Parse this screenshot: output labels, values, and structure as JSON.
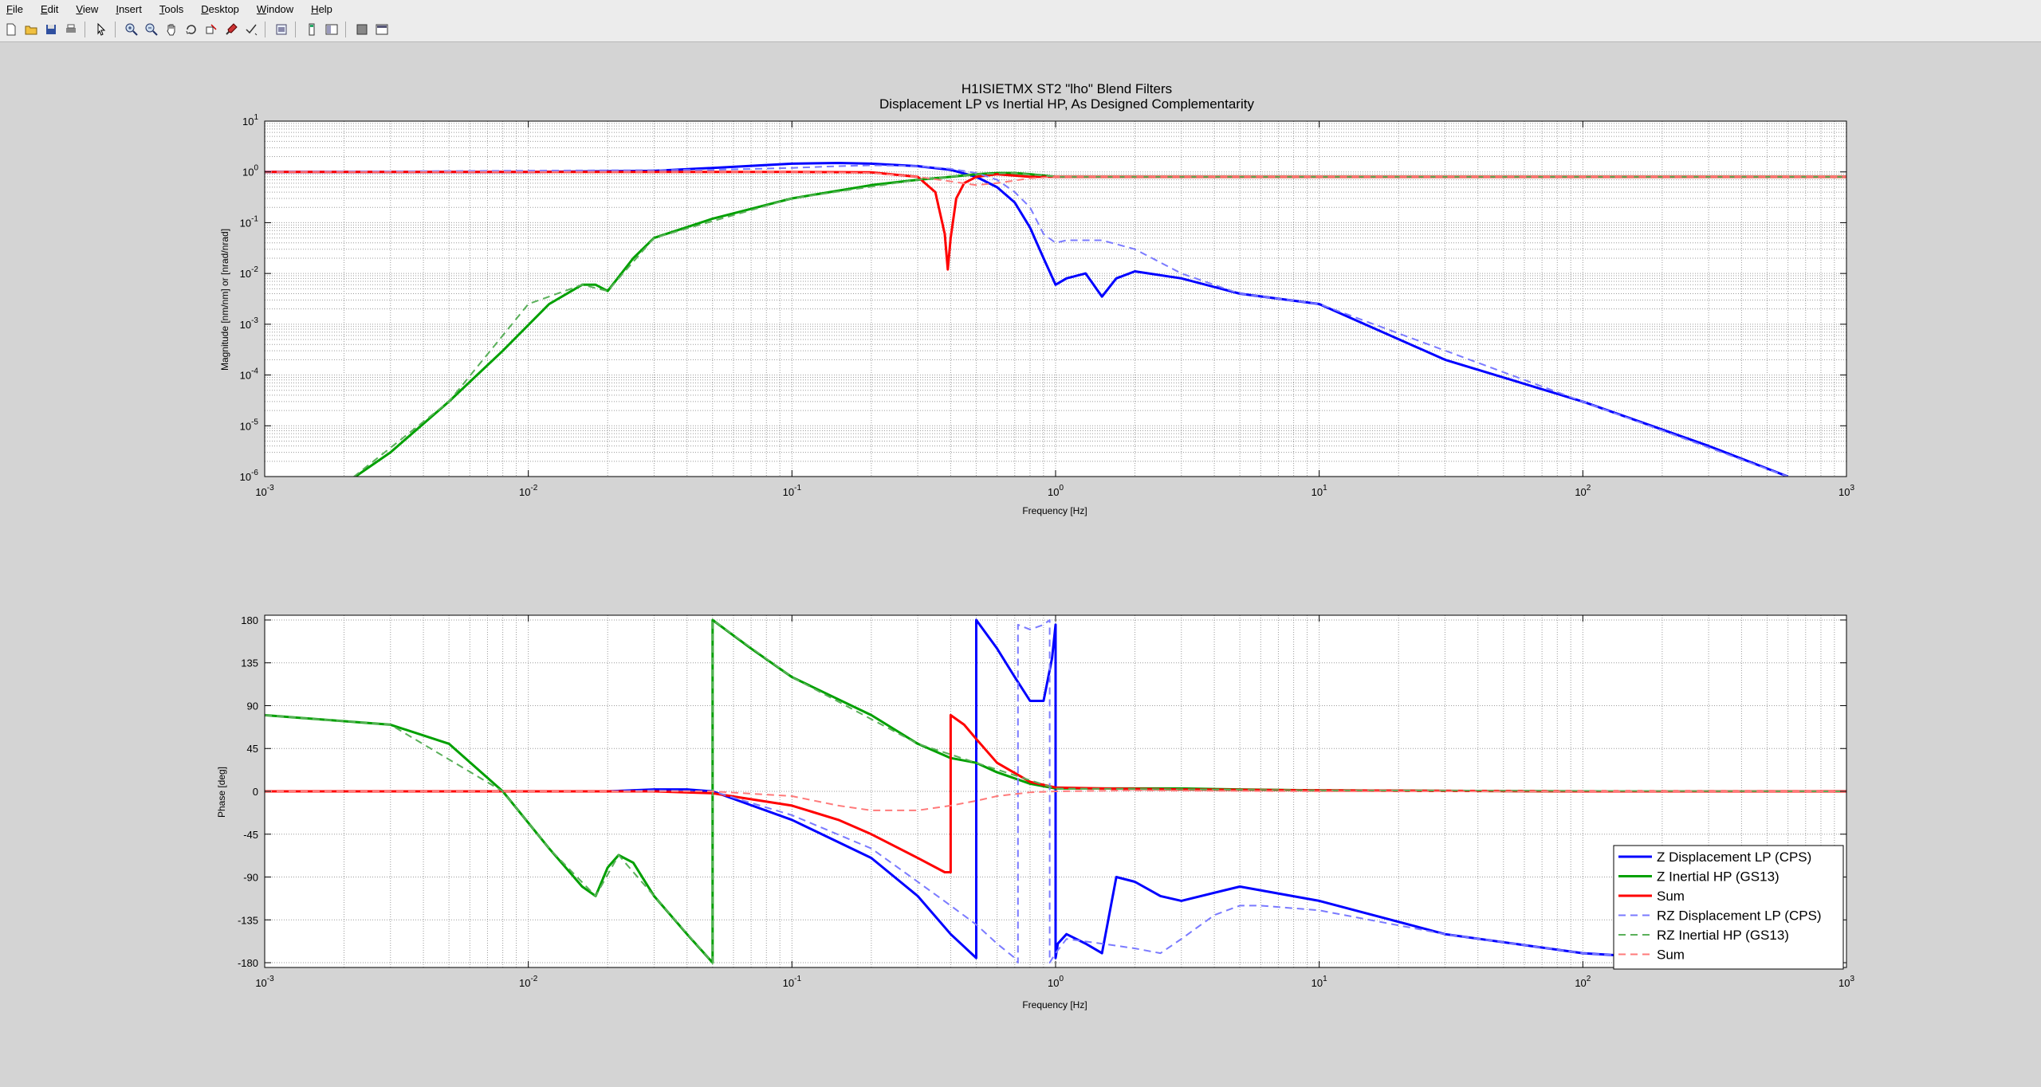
{
  "window": {
    "menu": [
      "File",
      "Edit",
      "View",
      "Insert",
      "Tools",
      "Desktop",
      "Window",
      "Help"
    ]
  },
  "toolbar_icons": [
    "new-figure-icon",
    "open-file-icon",
    "save-icon",
    "print-icon",
    "edit-plot-arrow-icon",
    "zoom-in-icon",
    "zoom-out-icon",
    "pan-hand-icon",
    "rotate-3d-icon",
    "data-cursor-icon",
    "brush-icon",
    "link-plot-icon",
    "insert-colorbar-icon",
    "insert-legend-icon",
    "hide-plot-tools-icon",
    "show-plot-tools-icon"
  ],
  "chart_data": [
    {
      "type": "line",
      "title": "H1ISIETMX ST2 \"lho\" Blend Filters",
      "subtitle": "Displacement LP vs Inertial HP, As Designed Complementarity",
      "xlabel": "Frequency [Hz]",
      "ylabel": "Magnitude [nm/nm] or [nrad/nrad]",
      "xscale": "log",
      "yscale": "log",
      "xlim": [
        0.001,
        1000
      ],
      "ylim": [
        1e-06,
        10
      ],
      "xticks": [
        "10-3",
        "10-2",
        "10-1",
        "100",
        "101",
        "102",
        "103"
      ],
      "yticks": [
        "10-6",
        "10-5",
        "10-4",
        "10-3",
        "10-2",
        "10-1",
        "100",
        "101"
      ],
      "grid": true,
      "series": [
        {
          "name": "Z Displacement LP (CPS)",
          "color": "#0000ff",
          "dash": "solid",
          "x": [
            0.001,
            0.01,
            0.03,
            0.05,
            0.1,
            0.15,
            0.2,
            0.3,
            0.4,
            0.5,
            0.6,
            0.7,
            0.8,
            0.9,
            1.0,
            1.1,
            1.3,
            1.5,
            1.7,
            2,
            3,
            5,
            10,
            30,
            100,
            300,
            600
          ],
          "y": [
            1,
            1,
            1.05,
            1.2,
            1.45,
            1.5,
            1.45,
            1.3,
            1.1,
            0.8,
            0.5,
            0.25,
            0.08,
            0.02,
            0.006,
            0.008,
            0.01,
            0.0035,
            0.008,
            0.011,
            0.008,
            0.004,
            0.0025,
            0.0002,
            3e-05,
            4e-06,
            1e-06
          ]
        },
        {
          "name": "Z Inertial HP (GS13)",
          "color": "#00a000",
          "dash": "solid",
          "x": [
            0.002,
            0.003,
            0.005,
            0.008,
            0.012,
            0.016,
            0.018,
            0.02,
            0.025,
            0.03,
            0.05,
            0.1,
            0.2,
            0.3,
            0.4,
            0.5,
            0.6,
            0.7,
            0.8,
            1.0,
            2,
            10,
            100,
            1000
          ],
          "y": [
            7e-07,
            3e-06,
            3e-05,
            0.0003,
            0.0025,
            0.006,
            0.006,
            0.0045,
            0.02,
            0.05,
            0.12,
            0.3,
            0.55,
            0.7,
            0.8,
            0.9,
            0.95,
            0.95,
            0.9,
            0.8,
            0.8,
            0.8,
            0.8,
            0.8
          ]
        },
        {
          "name": "Sum",
          "color": "#ff0000",
          "dash": "solid",
          "x": [
            0.001,
            0.1,
            0.2,
            0.3,
            0.35,
            0.38,
            0.39,
            0.4,
            0.42,
            0.45,
            0.5,
            0.6,
            0.8,
            1,
            1000
          ],
          "y": [
            1,
            1,
            0.98,
            0.8,
            0.4,
            0.06,
            0.012,
            0.05,
            0.3,
            0.6,
            0.8,
            0.9,
            0.8,
            0.8,
            0.8
          ]
        },
        {
          "name": "RZ Displacement LP (CPS)",
          "color": "#7a7aff",
          "dash": "dashed",
          "x": [
            0.001,
            0.05,
            0.1,
            0.15,
            0.2,
            0.3,
            0.4,
            0.5,
            0.6,
            0.7,
            0.8,
            0.9,
            1.0,
            1.1,
            1.5,
            2,
            3,
            5,
            10,
            100,
            600
          ],
          "y": [
            1,
            1.1,
            1.2,
            1.3,
            1.35,
            1.3,
            1.15,
            0.95,
            0.7,
            0.4,
            0.2,
            0.06,
            0.04,
            0.045,
            0.045,
            0.03,
            0.01,
            0.004,
            0.0025,
            3e-05,
            1e-06
          ]
        },
        {
          "name": "RZ Inertial HP (GS13)",
          "color": "#5ab05a",
          "dash": "dashed",
          "x": [
            0.002,
            0.005,
            0.01,
            0.016,
            0.02,
            0.03,
            0.1,
            0.3,
            0.5,
            0.7,
            1.0,
            1000
          ],
          "y": [
            7e-07,
            3e-05,
            0.0025,
            0.006,
            0.0045,
            0.05,
            0.3,
            0.7,
            0.9,
            0.95,
            0.8,
            0.8
          ]
        },
        {
          "name": "Sum",
          "color": "#ff7a7a",
          "dash": "dashed",
          "x": [
            0.001,
            0.1,
            0.2,
            0.3,
            0.4,
            0.5,
            0.6,
            0.8,
            1,
            1000
          ],
          "y": [
            1,
            1,
            0.95,
            0.8,
            0.65,
            0.55,
            0.6,
            0.75,
            0.8,
            0.8
          ]
        }
      ]
    },
    {
      "type": "line",
      "title": "",
      "xlabel": "Frequency [Hz]",
      "ylabel": "Phase [deg]",
      "xscale": "log",
      "xlim": [
        0.001,
        1000
      ],
      "ylim": [
        -185,
        185
      ],
      "xticks": [
        "10-3",
        "10-2",
        "10-1",
        "100",
        "101",
        "102",
        "103"
      ],
      "yticks": [
        "-180",
        "-135",
        "-90",
        "-45",
        "0",
        "45",
        "90",
        "135",
        "180"
      ],
      "ytick_values": [
        -180,
        -135,
        -90,
        -45,
        0,
        45,
        90,
        135,
        180
      ],
      "grid": true,
      "legend_position": "bottom-right",
      "series": [
        {
          "name": "Z Displacement LP (CPS)",
          "color": "#0000ff",
          "dash": "solid",
          "x": [
            0.001,
            0.02,
            0.03,
            0.04,
            0.05,
            0.1,
            0.2,
            0.3,
            0.4,
            0.5,
            0.5,
            0.6,
            0.7,
            0.8,
            0.9,
            0.97,
            1.0,
            1.0,
            1.02,
            1.1,
            1.3,
            1.5,
            1.7,
            2,
            2.5,
            3,
            5,
            10,
            30,
            100,
            300
          ],
          "y": [
            0,
            0,
            2,
            2,
            0,
            -30,
            -70,
            -110,
            -150,
            -175,
            180,
            150,
            120,
            95,
            95,
            140,
            175,
            -175,
            -160,
            -150,
            -160,
            -170,
            -90,
            -95,
            -110,
            -115,
            -100,
            -115,
            -150,
            -170,
            -178
          ]
        },
        {
          "name": "Z Inertial HP (GS13)",
          "color": "#00a000",
          "dash": "solid",
          "x": [
            0.001,
            0.003,
            0.005,
            0.008,
            0.012,
            0.016,
            0.018,
            0.02,
            0.022,
            0.025,
            0.03,
            0.04,
            0.05,
            0.05,
            0.07,
            0.1,
            0.2,
            0.3,
            0.4,
            0.5,
            0.6,
            0.8,
            1.0,
            1.5,
            2,
            3,
            5,
            10,
            100,
            1000
          ],
          "y": [
            80,
            70,
            50,
            0,
            -60,
            -100,
            -110,
            -80,
            -67,
            -75,
            -110,
            -150,
            -180,
            180,
            150,
            120,
            80,
            50,
            35,
            30,
            20,
            8,
            3,
            3,
            3,
            3,
            2,
            1,
            0,
            0
          ]
        },
        {
          "name": "Sum",
          "color": "#ff0000",
          "dash": "solid",
          "x": [
            0.001,
            0.03,
            0.05,
            0.1,
            0.15,
            0.2,
            0.3,
            0.38,
            0.4,
            0.4,
            0.45,
            0.5,
            0.6,
            0.8,
            1,
            1.5,
            3,
            10,
            100,
            1000
          ],
          "y": [
            0,
            0,
            -2,
            -15,
            -30,
            -45,
            -70,
            -85,
            -85,
            80,
            70,
            55,
            30,
            10,
            4,
            3,
            2,
            1,
            0,
            0
          ]
        },
        {
          "name": "RZ Displacement LP (CPS)",
          "color": "#7a7aff",
          "dash": "dashed",
          "x": [
            0.001,
            0.02,
            0.03,
            0.05,
            0.1,
            0.2,
            0.3,
            0.4,
            0.5,
            0.6,
            0.7,
            0.72,
            0.72,
            0.8,
            0.9,
            0.95,
            0.95,
            1.0,
            1.1,
            1.5,
            2,
            2.5,
            3,
            4,
            5,
            6,
            10,
            30,
            100,
            300
          ],
          "y": [
            0,
            0,
            1,
            0,
            -25,
            -60,
            -95,
            -120,
            -140,
            -160,
            -175,
            -180,
            175,
            170,
            175,
            180,
            -180,
            -170,
            -155,
            -160,
            -165,
            -170,
            -155,
            -130,
            -120,
            -120,
            -125,
            -150,
            -170,
            -178
          ]
        },
        {
          "name": "RZ Inertial HP (GS13)",
          "color": "#5ab05a",
          "dash": "dashed",
          "x": [
            0.001,
            0.003,
            0.008,
            0.012,
            0.018,
            0.022,
            0.03,
            0.05,
            0.05,
            0.1,
            0.3,
            0.5,
            1.0,
            10,
            1000
          ],
          "y": [
            80,
            70,
            0,
            -60,
            -110,
            -67,
            -110,
            -180,
            180,
            120,
            50,
            30,
            3,
            1,
            0
          ]
        },
        {
          "name": "Sum",
          "color": "#ff7a7a",
          "dash": "dashed",
          "x": [
            0.001,
            0.05,
            0.1,
            0.15,
            0.2,
            0.3,
            0.4,
            0.5,
            0.6,
            0.8,
            1,
            2,
            10,
            1000
          ],
          "y": [
            0,
            0,
            -5,
            -15,
            -20,
            -20,
            -15,
            -10,
            -5,
            -1,
            0,
            1,
            0,
            0
          ]
        }
      ]
    }
  ]
}
